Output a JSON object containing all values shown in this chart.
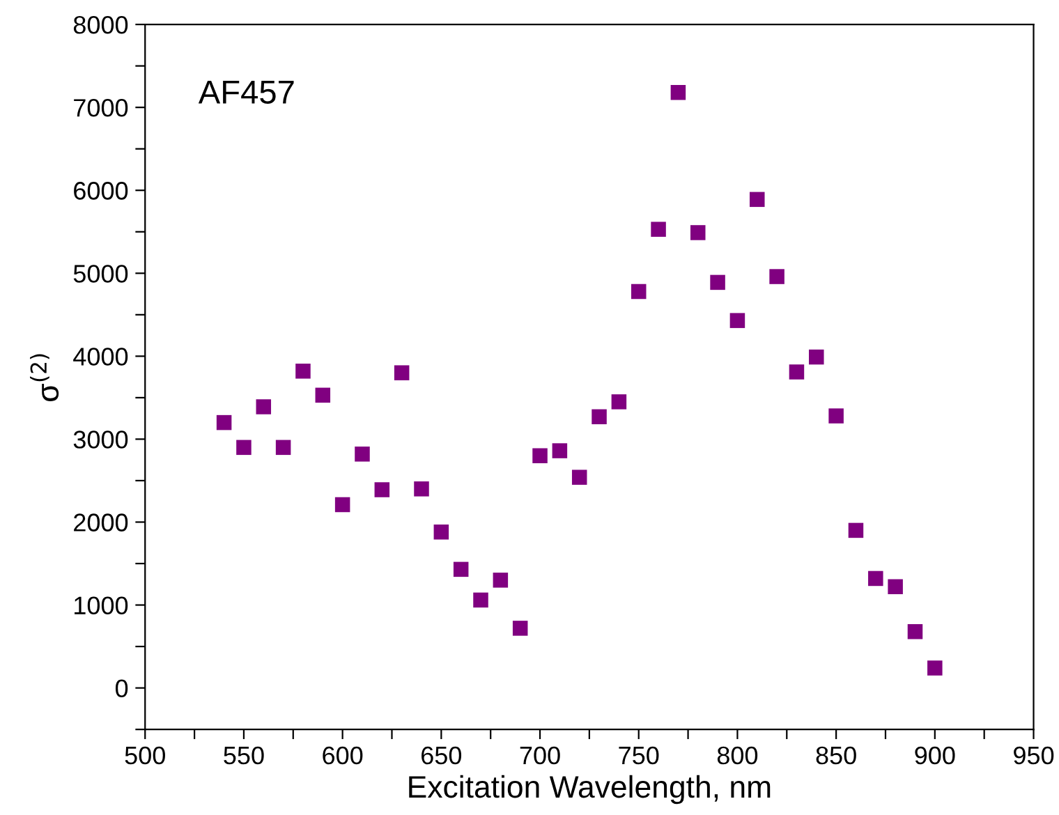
{
  "chart_data": {
    "type": "scatter",
    "xlabel": "Excitation Wavelength, nm",
    "ylabel": "σ$^{(2)}$",
    "annotations": [
      "AF457"
    ],
    "x": [
      540,
      550,
      560,
      570,
      580,
      590,
      600,
      610,
      620,
      630,
      640,
      650,
      660,
      670,
      680,
      690,
      700,
      710,
      720,
      730,
      740,
      750,
      760,
      770,
      780,
      790,
      800,
      810,
      820,
      830,
      840,
      850,
      860,
      870,
      880,
      890,
      900
    ],
    "series": [
      {
        "color": "#800080",
        "values": [
          3200,
          2900,
          3390,
          2900,
          3820,
          3530,
          2210,
          2820,
          2390,
          3800,
          2400,
          1880,
          1430,
          1060,
          1300,
          720,
          2800,
          2860,
          2540,
          3270,
          3450,
          4780,
          5530,
          7180,
          5490,
          4890,
          4430,
          5890,
          4960,
          3810,
          3990,
          3280,
          1900,
          1320,
          1220,
          680,
          240
        ]
      }
    ],
    "marker": "square",
    "grid": false,
    "legend": false,
    "xlim": [
      500,
      950
    ],
    "ylim": [
      -500,
      8000
    ],
    "xticks": [
      500,
      {
        "value": 525,
        "label": null
      },
      550,
      {
        "value": 575,
        "label": null
      },
      600,
      {
        "value": 625,
        "label": null
      },
      650,
      {
        "value": 675,
        "label": null
      },
      700,
      {
        "value": 725,
        "label": null
      },
      750,
      {
        "value": 775,
        "label": null
      },
      800,
      {
        "value": 825,
        "label": null
      },
      850,
      {
        "value": 875,
        "label": null
      },
      900,
      {
        "value": 925,
        "label": null
      },
      950
    ],
    "yticks": [
      {
        "value": -500,
        "label": null
      },
      0,
      {
        "value": 500,
        "label": null
      },
      1000,
      {
        "value": 1500,
        "label": null
      },
      2000,
      {
        "value": 2500,
        "label": null
      },
      3000,
      {
        "value": 3500,
        "label": null
      },
      4000,
      {
        "value": 4500,
        "label": null
      },
      5000,
      {
        "value": 5500,
        "label": null
      },
      6000,
      {
        "value": 6500,
        "label": null
      },
      7000,
      {
        "value": 7500,
        "label": null
      },
      8000
    ]
  }
}
